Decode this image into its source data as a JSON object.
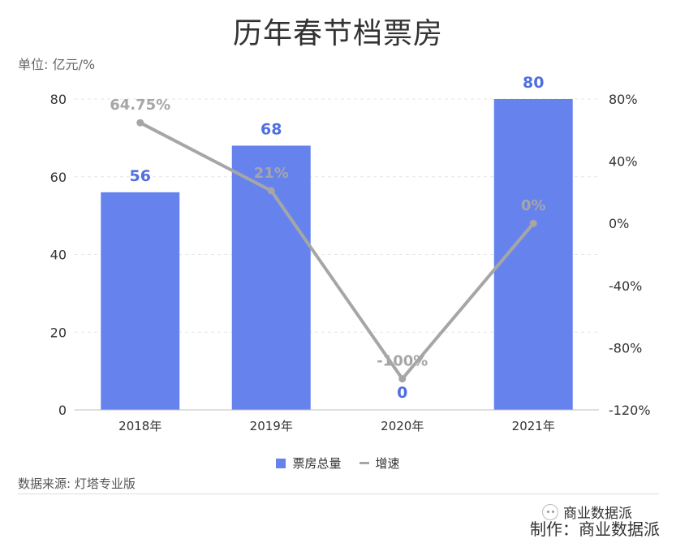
{
  "title": "历年春节档票房",
  "unit_label": "单位: 亿元/%",
  "source": "数据来源: 灯塔专业版",
  "wechat_label": "商业数据派",
  "maker": "制作：商业数据派",
  "colors": {
    "bar": "#6683ED",
    "line": "#A6A6A6",
    "bar_label": "#4F6FE0",
    "line_label": "#A6A6A6",
    "axis_text": "#333333",
    "grid": "#e6e6e6"
  },
  "legend": {
    "bar_label": "票房总量",
    "line_label": "增速"
  },
  "chart_data": {
    "type": "bar",
    "categories": [
      "2018年",
      "2019年",
      "2020年",
      "2021年"
    ],
    "series": [
      {
        "name": "票房总量",
        "type": "bar",
        "axis": "left",
        "values": [
          56,
          68,
          0,
          80
        ],
        "labels": [
          "56",
          "68",
          "0",
          "80"
        ]
      },
      {
        "name": "增速",
        "type": "line",
        "axis": "right",
        "values": [
          64.75,
          21,
          -100,
          0
        ],
        "labels": [
          "64.75%",
          "21%",
          "-100%",
          "0%"
        ]
      }
    ],
    "y_left": {
      "min": 0,
      "max": 80,
      "ticks": [
        "0",
        "20",
        "40",
        "60",
        "80"
      ]
    },
    "y_right": {
      "min": -120,
      "max": 80,
      "ticks": [
        "-120%",
        "-80%",
        "-40%",
        "0%",
        "40%",
        "80%"
      ]
    },
    "grid": true,
    "legend_position": "bottom"
  }
}
